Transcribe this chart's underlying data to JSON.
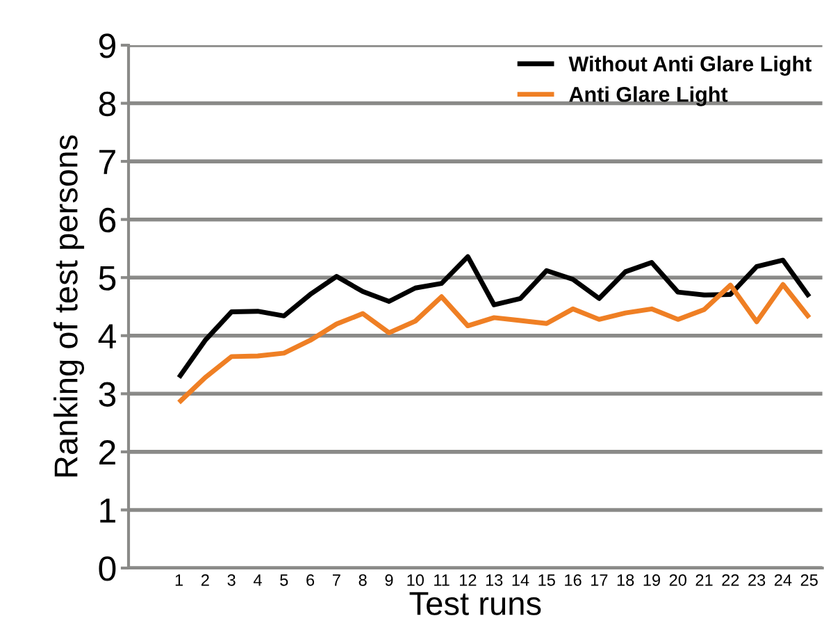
{
  "chart_data": {
    "type": "line",
    "xlabel": "Test runs",
    "ylabel": "Ranking of test persons",
    "categories": [
      "1",
      "2",
      "3",
      "4",
      "5",
      "6",
      "7",
      "8",
      "9",
      "10",
      "11",
      "12",
      "13",
      "14",
      "15",
      "16",
      "17",
      "18",
      "19",
      "20",
      "21",
      "22",
      "23",
      "24",
      "25"
    ],
    "series": [
      {
        "name": "Without Anti Glare Light",
        "color": "#000000",
        "values": [
          3.28,
          3.92,
          4.41,
          4.42,
          4.34,
          4.71,
          5.02,
          4.76,
          4.59,
          4.82,
          4.9,
          5.36,
          4.53,
          4.64,
          5.12,
          4.97,
          4.64,
          5.1,
          5.26,
          4.75,
          4.7,
          4.71,
          5.19,
          5.3,
          4.67
        ]
      },
      {
        "name": "Anti Glare Light",
        "color": "#ef7f24",
        "values": [
          2.85,
          3.28,
          3.64,
          3.65,
          3.7,
          3.92,
          4.2,
          4.38,
          4.05,
          4.25,
          4.67,
          4.17,
          4.31,
          4.26,
          4.21,
          4.46,
          4.28,
          4.39,
          4.46,
          4.28,
          4.45,
          4.87,
          4.24,
          4.88,
          4.31
        ]
      }
    ],
    "ylim": [
      0,
      9
    ],
    "yticks": [
      0,
      1,
      2,
      3,
      4,
      5,
      6,
      7,
      8,
      9
    ],
    "grid": "y",
    "legend": "top right",
    "marker": "none",
    "line_style": "solid"
  }
}
